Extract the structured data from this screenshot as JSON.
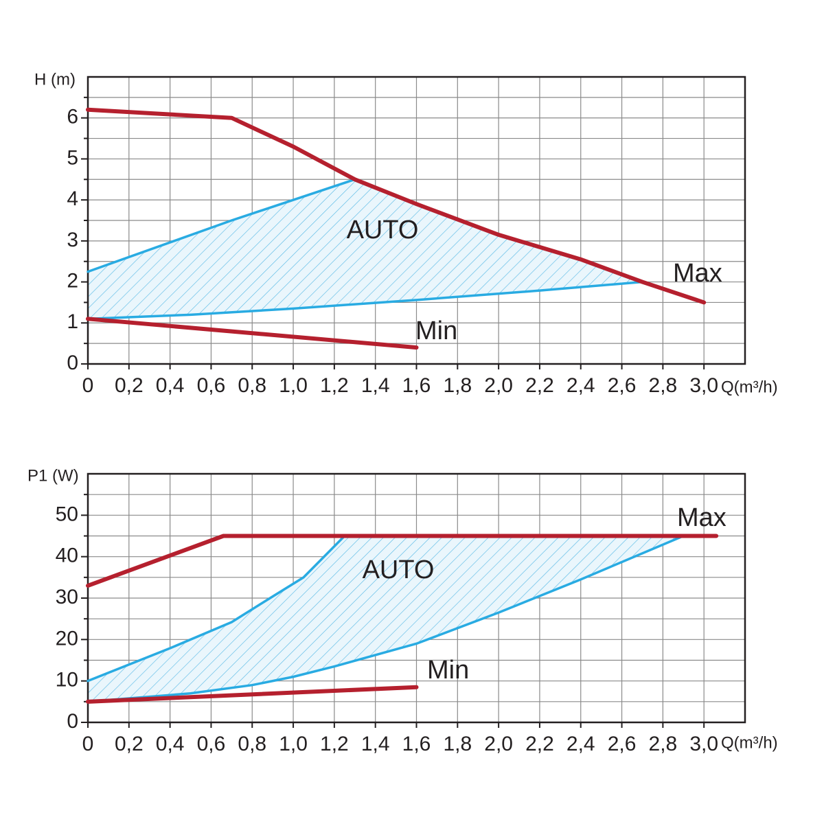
{
  "chart_data": [
    {
      "type": "line",
      "y_label": "H (m)",
      "x_label": "Q(m³/h)",
      "annotations": [
        "AUTO"
      ],
      "xlim": [
        0,
        3.2
      ],
      "ylim": [
        0,
        7
      ],
      "grid": true,
      "xticks": [
        0,
        {
          "value": 0.2,
          "label": "0,2"
        },
        {
          "value": 0.4,
          "label": "0,4"
        },
        {
          "value": 0.6,
          "label": "0,6"
        },
        {
          "value": 0.8,
          "label": "0,8"
        },
        {
          "value": 1.0,
          "label": "1,0"
        },
        {
          "value": 1.2,
          "label": "1,2"
        },
        {
          "value": 1.4,
          "label": "1,4"
        },
        {
          "value": 1.6,
          "label": "1,6"
        },
        {
          "value": 1.8,
          "label": "1,8"
        },
        {
          "value": 2.0,
          "label": "2,0"
        },
        {
          "value": 2.2,
          "label": "2,2"
        },
        {
          "value": 2.4,
          "label": "2,4"
        },
        {
          "value": 2.6,
          "label": "2,6"
        },
        {
          "value": 2.8,
          "label": "2,8"
        },
        {
          "value": 3.0,
          "label": "3,0"
        }
      ],
      "yticks": [
        0,
        1,
        2,
        3,
        4,
        5,
        6
      ],
      "yminorticks": [
        0.5,
        1.5,
        2.5,
        3.5,
        4.5,
        5.5,
        6.5
      ],
      "series": [
        {
          "name": "Max",
          "color": "#b5202e",
          "x": [
            0,
            0.7,
            1.0,
            1.3,
            1.6,
            2.0,
            2.4,
            2.7,
            3.0
          ],
          "values": [
            6.2,
            6.0,
            5.3,
            4.5,
            3.9,
            3.15,
            2.55,
            2.0,
            1.5
          ]
        },
        {
          "name": "Min",
          "color": "#b5202e",
          "x": [
            0,
            1.6
          ],
          "values": [
            1.1,
            0.4
          ]
        },
        {
          "color": "#29abe2",
          "x": [
            0,
            0.7,
            1.3
          ],
          "values": [
            2.25,
            3.5,
            4.5
          ]
        },
        {
          "color": "#29abe2",
          "x": [
            0,
            0.5,
            1.0,
            1.6,
            2.2,
            2.7
          ],
          "values": [
            1.1,
            1.2,
            1.35,
            1.56,
            1.79,
            2.0
          ]
        }
      ]
    },
    {
      "type": "line",
      "y_label": "P1 (W)",
      "x_label": "Q(m³/h)",
      "annotations": [
        "AUTO"
      ],
      "xlim": [
        0,
        3.2
      ],
      "ylim": [
        0,
        60
      ],
      "grid": true,
      "xticks": [
        0,
        {
          "value": 0.2,
          "label": "0,2"
        },
        {
          "value": 0.4,
          "label": "0,4"
        },
        {
          "value": 0.6,
          "label": "0,6"
        },
        {
          "value": 0.8,
          "label": "0,8"
        },
        {
          "value": 1.0,
          "label": "1,0"
        },
        {
          "value": 1.2,
          "label": "1,2"
        },
        {
          "value": 1.4,
          "label": "1,4"
        },
        {
          "value": 1.6,
          "label": "1,6"
        },
        {
          "value": 1.8,
          "label": "1,8"
        },
        {
          "value": 2.0,
          "label": "2,0"
        },
        {
          "value": 2.2,
          "label": "2,2"
        },
        {
          "value": 2.4,
          "label": "2,4"
        },
        {
          "value": 2.6,
          "label": "2,6"
        },
        {
          "value": 2.8,
          "label": "2,8"
        },
        {
          "value": 3.0,
          "label": "3,0"
        }
      ],
      "yticks": [
        0,
        10,
        20,
        30,
        40,
        50
      ],
      "yminorticks": [
        5,
        15,
        25,
        35,
        45,
        55
      ],
      "series": [
        {
          "name": "Max",
          "color": "#b5202e",
          "x": [
            0,
            0.66,
            3.06
          ],
          "values": [
            33,
            45,
            45
          ]
        },
        {
          "name": "Min",
          "color": "#b5202e",
          "x": [
            0,
            1.6
          ],
          "values": [
            5,
            8.5
          ]
        },
        {
          "color": "#29abe2",
          "x": [
            0,
            0.4,
            0.7,
            0.9,
            1.05,
            1.25
          ],
          "values": [
            10,
            17.9,
            24.2,
            30.4,
            35,
            45
          ]
        },
        {
          "color": "#29abe2",
          "x": [
            0,
            0.5,
            0.8,
            1.0,
            1.2,
            1.6,
            2.0,
            2.4,
            2.9
          ],
          "values": [
            5,
            7,
            9,
            11,
            13.5,
            19,
            26.5,
            34.5,
            45
          ]
        }
      ]
    }
  ]
}
